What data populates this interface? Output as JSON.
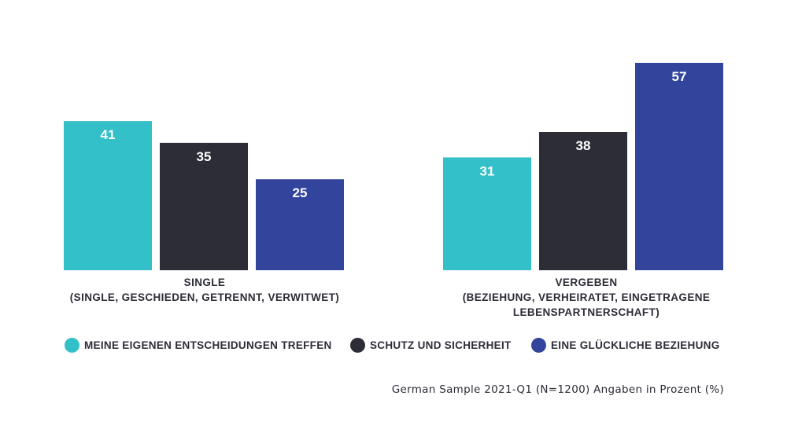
{
  "chart_data": {
    "type": "bar",
    "categories": [
      "SINGLE\n(SINGLE, GESCHIEDEN, GETRENNT, VERWITWET)",
      "VERGEBEN\n(BEZIEHUNG, VERHEIRATET, EINGETRAGENE\nLEBENSPARTNERSCHAFT)"
    ],
    "series": [
      {
        "name": "MEINE EIGENEN ENTSCHEIDUNGEN TREFFEN",
        "color": "#34c0c8",
        "values": [
          41,
          31
        ]
      },
      {
        "name": "SCHUTZ UND SICHERHEIT",
        "color": "#2c2d37",
        "values": [
          35,
          38
        ]
      },
      {
        "name": "EINE GLÜCKLICHE BEZIEHUNG",
        "color": "#33449c",
        "values": [
          25,
          57
        ]
      }
    ],
    "ylim": [
      0,
      57
    ],
    "legend_position": "bottom",
    "grid": false
  },
  "groups": [
    {
      "title": "SINGLE",
      "subtitle": "(SINGLE, GESCHIEDEN, GETRENNT, VERWITWET)"
    },
    {
      "title": "VERGEBEN",
      "subtitle": "(BEZIEHUNG, VERHEIRATET, EINGETRAGENE LEBENSPARTNERSCHAFT)"
    }
  ],
  "legend": [
    {
      "label": "MEINE EIGENEN ENTSCHEIDUNGEN TREFFEN",
      "color": "#34c0c8"
    },
    {
      "label": "SCHUTZ UND SICHERHEIT",
      "color": "#2c2d37"
    },
    {
      "label": "EINE GLÜCKLICHE BEZIEHUNG",
      "color": "#33449c"
    }
  ],
  "footnote": "German Sample 2021-Q1 (N=1200) Angaben in Prozent (%)"
}
